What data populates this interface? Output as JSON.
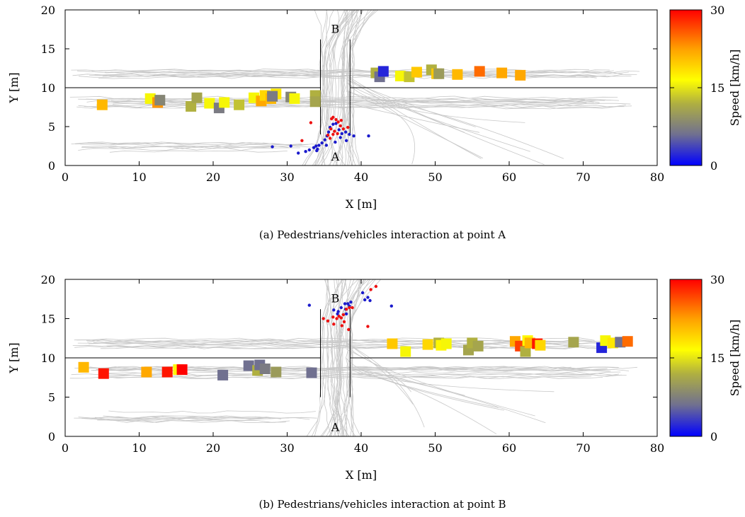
{
  "figure": {
    "captions": [
      "(a) Pedestrians/vehicles interaction at point A",
      "(b) Pedestrians/vehicles interaction at point B"
    ]
  },
  "colors": {
    "colormap": [
      "#0000ff",
      "#707090",
      "#b0b040",
      "#ffff00",
      "#ffa000",
      "#ff0000"
    ],
    "pedestrian_slow": "#1a1acc",
    "pedestrian_fast": "#ee1111",
    "trajectory": "#c8c8c8",
    "road_line": "#000000"
  },
  "chart_data": [
    {
      "type": "scatter",
      "title": "",
      "xlabel": "X [m]",
      "ylabel": "Y [m]",
      "xlim": [
        0,
        80
      ],
      "ylim": [
        0,
        20
      ],
      "xticks": [
        0,
        10,
        20,
        30,
        40,
        50,
        60,
        70,
        80
      ],
      "yticks": [
        0,
        5,
        10,
        15,
        20
      ],
      "annotations": [
        {
          "text": "B",
          "x": 36.5,
          "y": 17.6
        },
        {
          "text": "A",
          "x": 36.5,
          "y": 1.2
        }
      ],
      "colorbar": {
        "label": "Speed [km/h]",
        "min": 0,
        "max": 30,
        "ticks": [
          0,
          15,
          30
        ]
      },
      "road_centerline_y": 10,
      "crosswalk_lines": [
        {
          "x": 34.5,
          "y_from": 4.0,
          "y_to": 16.2
        },
        {
          "x": 38.5,
          "y_from": 4.0,
          "y_to": 16.2
        }
      ],
      "vehicles": [
        {
          "x": 5.0,
          "y": 7.8,
          "speed": 21
        },
        {
          "x": 11.5,
          "y": 8.6,
          "speed": 16
        },
        {
          "x": 12.5,
          "y": 8.1,
          "speed": 23
        },
        {
          "x": 12.8,
          "y": 8.4,
          "speed": 8
        },
        {
          "x": 17.0,
          "y": 7.6,
          "speed": 12
        },
        {
          "x": 17.8,
          "y": 8.7,
          "speed": 11
        },
        {
          "x": 19.5,
          "y": 8.0,
          "speed": 16
        },
        {
          "x": 20.8,
          "y": 7.4,
          "speed": 7
        },
        {
          "x": 21.5,
          "y": 8.1,
          "speed": 16
        },
        {
          "x": 23.5,
          "y": 7.8,
          "speed": 13
        },
        {
          "x": 25.5,
          "y": 8.7,
          "speed": 16
        },
        {
          "x": 26.5,
          "y": 8.3,
          "speed": 22
        },
        {
          "x": 27.0,
          "y": 9.0,
          "speed": 19
        },
        {
          "x": 27.8,
          "y": 8.6,
          "speed": 21
        },
        {
          "x": 28.5,
          "y": 9.2,
          "speed": 18
        },
        {
          "x": 28.0,
          "y": 8.9,
          "speed": 7
        },
        {
          "x": 30.5,
          "y": 8.8,
          "speed": 8
        },
        {
          "x": 31.0,
          "y": 8.6,
          "speed": 16
        },
        {
          "x": 33.8,
          "y": 9.0,
          "speed": 12
        },
        {
          "x": 33.8,
          "y": 8.2,
          "speed": 11
        },
        {
          "x": 42.0,
          "y": 11.9,
          "speed": 12
        },
        {
          "x": 42.5,
          "y": 11.4,
          "speed": 6
        },
        {
          "x": 43.0,
          "y": 12.1,
          "speed": 2
        },
        {
          "x": 45.3,
          "y": 11.5,
          "speed": 16
        },
        {
          "x": 46.5,
          "y": 11.4,
          "speed": 13
        },
        {
          "x": 47.5,
          "y": 12.0,
          "speed": 20
        },
        {
          "x": 49.5,
          "y": 12.3,
          "speed": 12
        },
        {
          "x": 50.2,
          "y": 11.8,
          "speed": 20
        },
        {
          "x": 50.5,
          "y": 11.8,
          "speed": 10
        },
        {
          "x": 53.0,
          "y": 11.7,
          "speed": 21
        },
        {
          "x": 56.0,
          "y": 12.1,
          "speed": 25
        },
        {
          "x": 59.0,
          "y": 11.9,
          "speed": 22
        },
        {
          "x": 61.5,
          "y": 11.6,
          "speed": 22
        }
      ],
      "pedestrians_slow": [
        [
          33.0,
          2.0
        ],
        [
          33.6,
          2.3
        ],
        [
          33.9,
          2.5
        ],
        [
          34.1,
          2.1
        ],
        [
          34.3,
          2.6
        ],
        [
          34.7,
          2.9
        ],
        [
          35.1,
          3.3
        ],
        [
          35.4,
          3.8
        ],
        [
          35.6,
          4.3
        ],
        [
          35.8,
          4.9
        ],
        [
          36.2,
          5.3
        ],
        [
          36.6,
          5.4
        ],
        [
          37.0,
          4.6
        ],
        [
          37.4,
          4.1
        ],
        [
          37.9,
          4.3
        ],
        [
          38.4,
          4.0
        ],
        [
          39.0,
          3.8
        ],
        [
          41.0,
          3.8
        ],
        [
          28.0,
          2.4
        ],
        [
          30.5,
          2.5
        ],
        [
          31.5,
          1.6
        ],
        [
          32.5,
          1.8
        ],
        [
          34.0,
          1.9
        ],
        [
          36.5,
          3.0
        ],
        [
          37.2,
          3.6
        ],
        [
          35.3,
          2.6
        ],
        [
          38.0,
          3.2
        ]
      ],
      "pedestrians_fast": [
        [
          35.5,
          3.9
        ],
        [
          35.9,
          4.7
        ],
        [
          36.2,
          6.2
        ],
        [
          36.6,
          5.9
        ],
        [
          36.9,
          5.6
        ],
        [
          37.2,
          5.1
        ],
        [
          37.6,
          4.7
        ],
        [
          36.4,
          4.4
        ],
        [
          36.8,
          4.1
        ],
        [
          37.3,
          5.8
        ],
        [
          35.8,
          3.5
        ],
        [
          32.0,
          3.2
        ],
        [
          33.2,
          5.5
        ],
        [
          36.0,
          6.0
        ],
        [
          38.2,
          4.9
        ],
        [
          36.2,
          4.0
        ]
      ]
    },
    {
      "type": "scatter",
      "title": "",
      "xlabel": "X [m]",
      "ylabel": "Y [m]",
      "xlim": [
        0,
        80
      ],
      "ylim": [
        0,
        20
      ],
      "xticks": [
        0,
        10,
        20,
        30,
        40,
        50,
        60,
        70,
        80
      ],
      "yticks": [
        0,
        5,
        10,
        15,
        20
      ],
      "annotations": [
        {
          "text": "B",
          "x": 36.5,
          "y": 17.6
        },
        {
          "text": "A",
          "x": 36.5,
          "y": 1.2
        }
      ],
      "colorbar": {
        "label": "Speed [km/h]",
        "min": 0,
        "max": 30,
        "ticks": [
          0,
          15,
          30
        ]
      },
      "road_centerline_y": 10,
      "crosswalk_lines": [
        {
          "x": 34.5,
          "y_from": 5.0,
          "y_to": 16.2
        },
        {
          "x": 38.5,
          "y_from": 5.0,
          "y_to": 16.2
        }
      ],
      "vehicles": [
        {
          "x": 2.5,
          "y": 8.8,
          "speed": 21
        },
        {
          "x": 5.2,
          "y": 8.0,
          "speed": 29
        },
        {
          "x": 11.0,
          "y": 8.2,
          "speed": 22
        },
        {
          "x": 13.8,
          "y": 8.2,
          "speed": 29
        },
        {
          "x": 15.3,
          "y": 8.5,
          "speed": 17
        },
        {
          "x": 15.8,
          "y": 8.5,
          "speed": 30
        },
        {
          "x": 21.3,
          "y": 7.8,
          "speed": 6
        },
        {
          "x": 24.8,
          "y": 9.0,
          "speed": 6
        },
        {
          "x": 26.0,
          "y": 8.4,
          "speed": 12
        },
        {
          "x": 26.3,
          "y": 9.1,
          "speed": 6
        },
        {
          "x": 27.0,
          "y": 8.6,
          "speed": 7
        },
        {
          "x": 28.5,
          "y": 8.2,
          "speed": 10
        },
        {
          "x": 33.3,
          "y": 8.1,
          "speed": 6
        },
        {
          "x": 44.2,
          "y": 11.8,
          "speed": 20
        },
        {
          "x": 46.0,
          "y": 10.8,
          "speed": 16
        },
        {
          "x": 49.0,
          "y": 11.7,
          "speed": 19
        },
        {
          "x": 50.5,
          "y": 11.9,
          "speed": 12
        },
        {
          "x": 50.8,
          "y": 11.6,
          "speed": 17
        },
        {
          "x": 51.5,
          "y": 11.8,
          "speed": 16
        },
        {
          "x": 54.5,
          "y": 11.0,
          "speed": 11
        },
        {
          "x": 55.0,
          "y": 11.9,
          "speed": 12
        },
        {
          "x": 55.8,
          "y": 11.5,
          "speed": 11
        },
        {
          "x": 60.8,
          "y": 12.1,
          "speed": 22
        },
        {
          "x": 61.5,
          "y": 11.5,
          "speed": 27
        },
        {
          "x": 62.2,
          "y": 10.8,
          "speed": 12
        },
        {
          "x": 62.5,
          "y": 12.2,
          "speed": 17
        },
        {
          "x": 62.8,
          "y": 11.9,
          "speed": 21
        },
        {
          "x": 63.8,
          "y": 11.8,
          "speed": 29
        },
        {
          "x": 64.2,
          "y": 11.6,
          "speed": 19
        },
        {
          "x": 68.7,
          "y": 12.0,
          "speed": 11
        },
        {
          "x": 72.5,
          "y": 11.3,
          "speed": 2
        },
        {
          "x": 73.0,
          "y": 12.2,
          "speed": 16
        },
        {
          "x": 74.0,
          "y": 11.9,
          "speed": 18
        },
        {
          "x": 75.0,
          "y": 12.0,
          "speed": 6
        },
        {
          "x": 76.0,
          "y": 12.1,
          "speed": 25
        }
      ],
      "pedestrians_slow": [
        [
          33.0,
          16.7
        ],
        [
          36.3,
          16.1
        ],
        [
          36.9,
          15.9
        ],
        [
          37.3,
          16.4
        ],
        [
          37.8,
          16.9
        ],
        [
          38.2,
          16.9
        ],
        [
          38.6,
          17.1
        ],
        [
          37.9,
          16.2
        ],
        [
          38.0,
          15.6
        ],
        [
          40.2,
          18.3
        ],
        [
          40.5,
          17.4
        ],
        [
          40.9,
          17.7
        ],
        [
          41.2,
          17.3
        ],
        [
          44.1,
          16.6
        ],
        [
          36.8,
          15.6
        ],
        [
          38.4,
          16.6
        ]
      ],
      "pedestrians_fast": [
        [
          34.9,
          15.0
        ],
        [
          35.5,
          14.7
        ],
        [
          36.3,
          14.3
        ],
        [
          36.7,
          15.0
        ],
        [
          37.0,
          15.3
        ],
        [
          37.3,
          15.1
        ],
        [
          37.6,
          15.5
        ],
        [
          38.0,
          16.2
        ],
        [
          38.4,
          16.4
        ],
        [
          38.8,
          16.4
        ],
        [
          37.4,
          14.1
        ],
        [
          38.3,
          13.6
        ],
        [
          40.9,
          14.0
        ],
        [
          41.3,
          18.7
        ],
        [
          42.0,
          19.1
        ],
        [
          37.7,
          14.6
        ],
        [
          36.2,
          15.2
        ]
      ]
    }
  ]
}
